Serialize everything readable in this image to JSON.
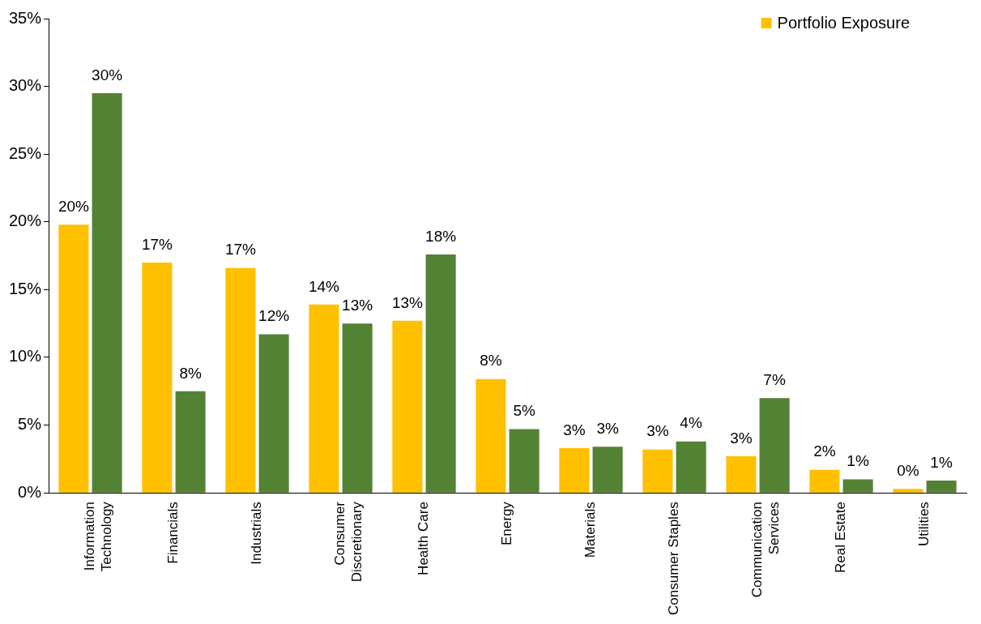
{
  "chart_data": {
    "type": "bar",
    "categories": [
      "Information Technology",
      "Financials",
      "Industrials",
      "Consumer Discretionary",
      "Health Care",
      "Energy",
      "Materials",
      "Consumer Staples",
      "Communication Services",
      "Real Estate",
      "Utilities"
    ],
    "series": [
      {
        "name": "Portfolio Exposure",
        "color": "#ffc000",
        "values": [
          19.8,
          17.0,
          16.6,
          13.9,
          12.7,
          8.4,
          3.3,
          3.2,
          2.7,
          1.7,
          0.3
        ],
        "value_labels": [
          "20%",
          "17%",
          "17%",
          "14%",
          "13%",
          "8%",
          "3%",
          "3%",
          "3%",
          "2%",
          "0%"
        ]
      },
      {
        "color": "#548235",
        "values": [
          29.5,
          7.5,
          11.7,
          12.5,
          17.6,
          4.7,
          3.4,
          3.8,
          7.0,
          1.0,
          0.9
        ],
        "value_labels": [
          "30%",
          "8%",
          "12%",
          "13%",
          "18%",
          "5%",
          "3%",
          "4%",
          "7%",
          "1%",
          "1%"
        ]
      }
    ],
    "ylim": [
      0,
      35
    ],
    "yticks": [
      {
        "value": 0,
        "label": "0%"
      },
      {
        "value": 5,
        "label": "5%"
      },
      {
        "value": 10,
        "label": "10%"
      },
      {
        "value": 15,
        "label": "15%"
      },
      {
        "value": 20,
        "label": "20%"
      },
      {
        "value": 25,
        "label": "25%"
      },
      {
        "value": 30,
        "label": "30%"
      },
      {
        "value": 35,
        "label": "35%"
      }
    ],
    "grid": false,
    "legend": "top right"
  }
}
